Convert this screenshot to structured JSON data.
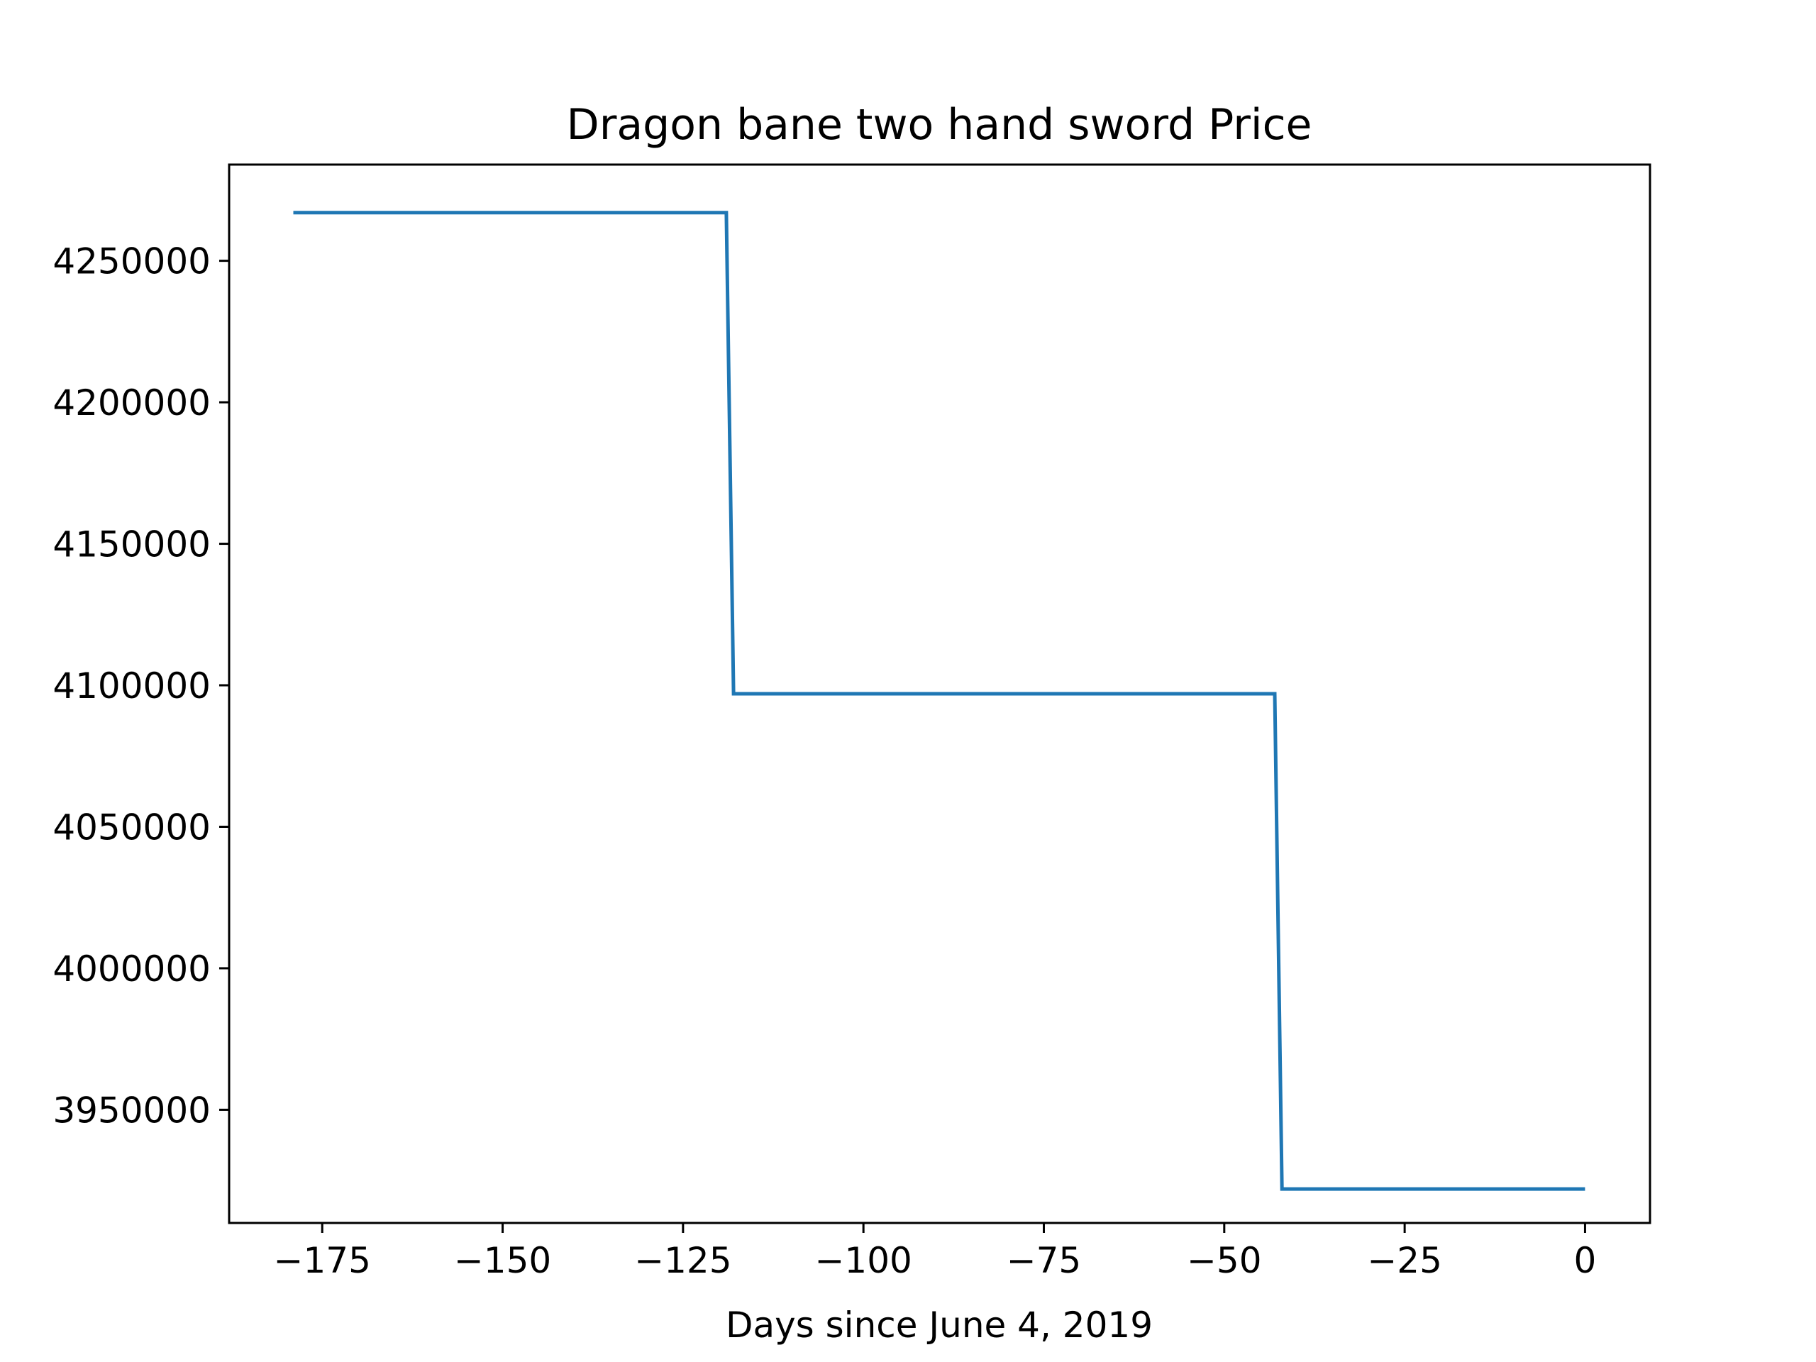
{
  "chart_data": {
    "type": "line",
    "title": "Dragon bane two hand sword Price",
    "xlabel": "Days since June 4, 2019",
    "ylabel": "",
    "xlim": [
      -187.9,
      9.0
    ],
    "ylim": [
      3910000,
      4284000
    ],
    "xticks": [
      -175,
      -150,
      -125,
      -100,
      -75,
      -50,
      -25,
      0
    ],
    "xtick_labels": [
      "−175",
      "−150",
      "−125",
      "−100",
      "−75",
      "−50",
      "−25",
      "0"
    ],
    "yticks": [
      3950000,
      4000000,
      4050000,
      4100000,
      4150000,
      4200000,
      4250000
    ],
    "ytick_labels": [
      "3950000",
      "4000000",
      "4050000",
      "4100000",
      "4150000",
      "4200000",
      "4250000"
    ],
    "grid": false,
    "legend": "none",
    "series": [
      {
        "color": "#1f77b4",
        "x": [
          -179,
          -119,
          -118,
          -43,
          -42,
          0
        ],
        "y": [
          4267000,
          4267000,
          4097000,
          4097000,
          3922000,
          3922000
        ]
      }
    ]
  }
}
